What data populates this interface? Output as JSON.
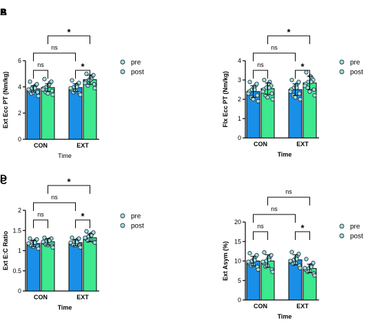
{
  "legend": {
    "pre_color": "#1a8fe8",
    "post_color": "#3de88f",
    "point_color": "#a8dcd6"
  },
  "chart_data": [
    {
      "panel": "A",
      "type": "bar",
      "ylabel": "Ext Ecc PT (Nm/kg)",
      "xlabel": "Time",
      "xlabel_bold": false,
      "ylim": [
        0,
        6
      ],
      "yticks": [
        0,
        2,
        4,
        6
      ],
      "categories": [
        "CON",
        "EXT"
      ],
      "series": [
        {
          "name": "pre",
          "values": [
            3.85,
            3.95
          ],
          "err": [
            0.25,
            0.3
          ],
          "points": [
            [
              4.4,
              3.6,
              3.9,
              4.1,
              3.3,
              3.7,
              4.0,
              3.5,
              4.2,
              3.8,
              3.9,
              3.6
            ],
            [
              4.5,
              3.5,
              4.0,
              4.2,
              3.4,
              3.8,
              4.1,
              3.6,
              4.3,
              3.9,
              4.0,
              3.7
            ]
          ]
        },
        {
          "name": "post",
          "values": [
            3.95,
            4.55
          ],
          "err": [
            0.3,
            0.35
          ],
          "points": [
            [
              4.6,
              3.7,
              4.0,
              4.3,
              3.4,
              3.9,
              4.1,
              3.6,
              4.4,
              3.8,
              4.2,
              3.5
            ],
            [
              5.0,
              4.2,
              4.5,
              4.8,
              3.9,
              4.4,
              4.7,
              4.1,
              4.9,
              4.3,
              4.6,
              4.5
            ]
          ]
        }
      ],
      "brackets": [
        {
          "from": [
            0,
            0
          ],
          "to": [
            0,
            1
          ],
          "label": "ns"
        },
        {
          "from": [
            1,
            0
          ],
          "to": [
            1,
            1
          ],
          "label": "*"
        },
        {
          "from": [
            0,
            0
          ],
          "to": [
            1,
            0
          ],
          "label": "ns"
        },
        {
          "from": [
            0,
            1
          ],
          "to": [
            1,
            1
          ],
          "label": "*"
        }
      ]
    },
    {
      "panel": "B",
      "type": "bar",
      "ylabel": "Flx Ecc PT (Nm/kg)",
      "xlabel": "Time",
      "xlabel_bold": true,
      "ylim": [
        0,
        4
      ],
      "yticks": [
        0,
        1,
        2,
        3,
        4
      ],
      "categories": [
        "CON",
        "EXT"
      ],
      "series": [
        {
          "name": "pre",
          "values": [
            2.4,
            2.5
          ],
          "err": [
            0.3,
            0.3
          ],
          "points": [
            [
              2.9,
              2.2,
              2.5,
              2.7,
              1.9,
              2.4,
              2.6,
              2.1,
              2.8,
              2.3,
              2.5,
              2.0
            ],
            [
              3.0,
              2.3,
              2.6,
              2.8,
              2.0,
              2.5,
              2.7,
              2.2,
              2.9,
              2.4,
              2.6,
              2.1
            ]
          ]
        },
        {
          "name": "post",
          "values": [
            2.55,
            2.85
          ],
          "err": [
            0.3,
            0.35
          ],
          "points": [
            [
              3.0,
              2.3,
              2.6,
              2.9,
              2.0,
              2.5,
              2.8,
              2.2,
              2.7,
              2.4,
              2.6,
              2.1
            ],
            [
              3.4,
              2.5,
              2.9,
              3.1,
              2.2,
              2.8,
              3.2,
              2.6,
              3.0,
              2.7,
              2.9,
              2.4
            ]
          ]
        }
      ],
      "brackets": [
        {
          "from": [
            0,
            0
          ],
          "to": [
            0,
            1
          ],
          "label": "ns"
        },
        {
          "from": [
            1,
            0
          ],
          "to": [
            1,
            1
          ],
          "label": "*"
        },
        {
          "from": [
            0,
            0
          ],
          "to": [
            1,
            0
          ],
          "label": "ns"
        },
        {
          "from": [
            0,
            1
          ],
          "to": [
            1,
            1
          ],
          "label": "*"
        }
      ]
    },
    {
      "panel": "C",
      "type": "bar",
      "ylabel": "Ext E:C Ratio",
      "xlabel": "Time",
      "xlabel_bold": true,
      "ylim": [
        0,
        2.0
      ],
      "yticks": [
        0.0,
        0.5,
        1.0,
        1.5,
        2.0
      ],
      "categories": [
        "CON",
        "EXT"
      ],
      "series": [
        {
          "name": "pre",
          "values": [
            1.18,
            1.2
          ],
          "err": [
            0.08,
            0.08
          ],
          "points": [
            [
              1.3,
              1.1,
              1.2,
              1.25,
              1.05,
              1.15,
              1.22,
              1.12,
              1.28,
              1.18,
              1.2,
              1.1
            ],
            [
              1.32,
              1.12,
              1.22,
              1.27,
              1.08,
              1.17,
              1.24,
              1.14,
              1.3,
              1.2,
              1.21,
              1.13
            ]
          ]
        },
        {
          "name": "post",
          "values": [
            1.22,
            1.32
          ],
          "err": [
            0.08,
            0.1
          ],
          "points": [
            [
              1.32,
              1.12,
              1.24,
              1.28,
              1.08,
              1.2,
              1.26,
              1.15,
              1.3,
              1.22,
              1.25,
              1.14
            ],
            [
              1.48,
              1.22,
              1.35,
              1.42,
              1.2,
              1.3,
              1.4,
              1.25,
              1.45,
              1.32,
              1.38,
              1.28
            ]
          ]
        }
      ],
      "brackets": [
        {
          "from": [
            0,
            0
          ],
          "to": [
            0,
            1
          ],
          "label": "ns"
        },
        {
          "from": [
            1,
            0
          ],
          "to": [
            1,
            1
          ],
          "label": "*"
        },
        {
          "from": [
            0,
            0
          ],
          "to": [
            1,
            0
          ],
          "label": "ns"
        },
        {
          "from": [
            0,
            1
          ],
          "to": [
            1,
            1
          ],
          "label": "*"
        }
      ]
    },
    {
      "panel": "D",
      "type": "bar",
      "ylabel": "Ext Asym (%)",
      "xlabel": "Time",
      "xlabel_bold": true,
      "ylim": [
        0,
        20
      ],
      "yticks": [
        0,
        5,
        10,
        15,
        20
      ],
      "categories": [
        "CON",
        "EXT"
      ],
      "series": [
        {
          "name": "pre",
          "values": [
            10.0,
            10.3
          ],
          "err": [
            1.2,
            1.3
          ],
          "points": [
            [
              12.0,
              8.5,
              10.0,
              11.0,
              7.8,
              9.5,
              10.5,
              8.8,
              11.5,
              9.8,
              10.2,
              9.0
            ],
            [
              12.3,
              8.8,
              10.3,
              11.3,
              8.2,
              9.8,
              10.8,
              9.2,
              11.8,
              10.0,
              10.5,
              9.5
            ]
          ]
        },
        {
          "name": "post",
          "values": [
            10.0,
            8.1
          ],
          "err": [
            1.6,
            1.1
          ],
          "points": [
            [
              12.2,
              7.8,
              10.0,
              11.0,
              7.2,
              9.5,
              10.8,
              8.5,
              11.5,
              9.8,
              10.3,
              8.8
            ],
            [
              10.5,
              6.8,
              8.0,
              9.0,
              6.3,
              7.8,
              8.8,
              7.2,
              9.5,
              8.2,
              8.5,
              7.5
            ]
          ]
        }
      ],
      "brackets": [
        {
          "from": [
            0,
            0
          ],
          "to": [
            0,
            1
          ],
          "label": "ns"
        },
        {
          "from": [
            1,
            0
          ],
          "to": [
            1,
            1
          ],
          "label": "*"
        },
        {
          "from": [
            0,
            0
          ],
          "to": [
            1,
            0
          ],
          "label": "ns"
        },
        {
          "from": [
            0,
            1
          ],
          "to": [
            1,
            1
          ],
          "label": "ns"
        }
      ]
    }
  ]
}
